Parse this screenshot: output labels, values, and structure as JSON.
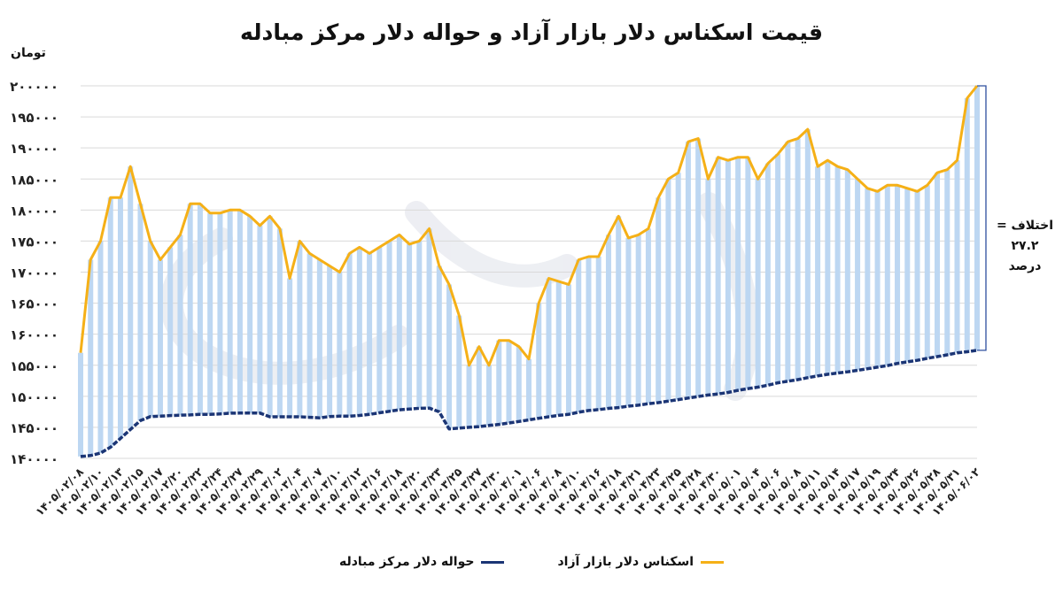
{
  "title": "قیمت اسکناس دلار بازار آزاد و حواله دلار مرکز مبادله",
  "y_unit": "تومان",
  "annotation": {
    "line1": "اختلاف =",
    "line2": "۲۷.۲",
    "line3": "درصد"
  },
  "colors": {
    "free": "#F5B017",
    "exchange": "#1B3575",
    "fill": "#BDD7F2",
    "grid": "#D9D9D9"
  },
  "chart_data": {
    "type": "line",
    "title": "قیمت اسکناس دلار بازار آزاد و حواله دلار مرکز مبادله",
    "ylabel": "تومان",
    "xlabel": "",
    "ylim": [
      140000,
      200000
    ],
    "yticks": [
      "۱۴۰۰۰۰",
      "۱۴۵۰۰۰",
      "۱۵۰۰۰۰",
      "۱۵۵۰۰۰",
      "۱۶۰۰۰۰",
      "۱۶۵۰۰۰",
      "۱۷۰۰۰۰",
      "۱۷۵۰۰۰",
      "۱۸۰۰۰۰",
      "۱۸۵۰۰۰",
      "۱۹۰۰۰۰",
      "۱۹۵۰۰۰",
      "۲۰۰۰۰۰"
    ],
    "xtick_labels": [
      "۱۴۰۵/۰۲/۰۸",
      "۱۴۰۵/۰۲/۱۰",
      "۱۴۰۵/۰۲/۱۳",
      "۱۴۰۵/۰۲/۱۵",
      "۱۴۰۵/۰۲/۱۷",
      "۱۴۰۵/۰۲/۲۰",
      "۱۴۰۵/۰۲/۲۲",
      "۱۴۰۵/۰۲/۲۴",
      "۱۴۰۵/۰۲/۲۷",
      "۱۴۰۵/۰۲/۲۹",
      "۱۴۰۵/۰۳/۰۲",
      "۱۴۰۵/۰۳/۰۴",
      "۱۴۰۵/۰۳/۰۷",
      "۱۴۰۵/۰۳/۱۰",
      "۱۴۰۵/۰۳/۱۲",
      "۱۴۰۵/۰۳/۱۶",
      "۱۴۰۵/۰۳/۱۸",
      "۱۴۰۵/۰۳/۲۰",
      "۱۴۰۵/۰۳/۲۳",
      "۱۴۰۵/۰۳/۲۵",
      "۱۴۰۵/۰۳/۲۷",
      "۱۴۰۵/۰۳/۳۰",
      "۱۴۰۵/۰۴/۰۱",
      "۱۴۰۵/۰۴/۰۶",
      "۱۴۰۵/۰۴/۰۸",
      "۱۴۰۵/۰۴/۱۰",
      "۱۴۰۵/۰۴/۱۶",
      "۱۴۰۵/۰۴/۱۸",
      "۱۴۰۵/۰۴/۲۱",
      "۱۴۰۵/۰۴/۲۳",
      "۱۴۰۵/۰۴/۲۵",
      "۱۴۰۵/۰۴/۲۸",
      "۱۴۰۵/۰۴/۳۰",
      "۱۴۰۵/۰۵/۰۱",
      "۱۴۰۵/۰۵/۰۴",
      "۱۴۰۵/۰۵/۰۶",
      "۱۴۰۵/۰۵/۰۸",
      "۱۴۰۵/۰۵/۱۱",
      "۱۴۰۵/۰۵/۱۴",
      "۱۴۰۵/۰۵/۱۷",
      "۱۴۰۵/۰۵/۱۹",
      "۱۴۰۵/۰۵/۲۴",
      "۱۴۰۵/۰۵/۲۶",
      "۱۴۰۵/۰۵/۲۸",
      "۱۴۰۵/۰۵/۳۱",
      "۱۴۰۵/۰۶/۰۲"
    ],
    "legend_position": "bottom",
    "grid": true,
    "series": [
      {
        "name": "اسکناس دلار بازار آزاد",
        "values": [
          157000,
          172000,
          175000,
          182000,
          182000,
          187000,
          181000,
          175000,
          172000,
          174000,
          176000,
          181000,
          181000,
          179500,
          179500,
          180000,
          180000,
          179000,
          177500,
          179000,
          177000,
          169000,
          175000,
          173000,
          172000,
          171000,
          170000,
          173000,
          174000,
          173000,
          174000,
          175000,
          176000,
          174500,
          175000,
          177000,
          171000,
          168000,
          163000,
          155000,
          158000,
          155000,
          159000,
          159000,
          158000,
          156000,
          165000,
          169000,
          168500,
          168000,
          172000,
          172500,
          172500,
          176000,
          179000,
          175500,
          176000,
          177000,
          182000,
          185000,
          186000,
          191000,
          191500,
          185000,
          188500,
          188000,
          188500,
          188500,
          185000,
          187500,
          189000,
          191000,
          191500,
          193000,
          187000,
          188000,
          187000,
          186500,
          185000,
          183500,
          183000,
          184000,
          184000,
          183500,
          183000,
          184000,
          186000,
          186500,
          188000,
          198000,
          200000
        ]
      },
      {
        "name": "حواله دلار مرکز مبادله",
        "values": [
          140300,
          140400,
          140600,
          141100,
          142000,
          143200,
          144300,
          145600,
          146500,
          146800,
          146800,
          146900,
          146900,
          147000,
          147000,
          147100,
          147100,
          147100,
          147200,
          147300,
          147300,
          147300,
          147300,
          147300,
          146600,
          146700,
          146700,
          146700,
          146700,
          146600,
          146500,
          146700,
          146800,
          146800,
          146800,
          146900,
          147000,
          147200,
          147400,
          147600,
          147800,
          147900,
          148000,
          148100,
          148100,
          148200,
          144700,
          144800,
          144900,
          145000,
          145100,
          145200,
          145400,
          145500,
          145700,
          145900,
          146100,
          146300,
          146500,
          146700,
          146900,
          147000,
          147200,
          147500,
          147700,
          147800,
          148000,
          148100,
          148200,
          148400,
          148500,
          148700,
          148900,
          149000,
          149200,
          149400,
          149600,
          149800,
          150000,
          150200,
          150300,
          150500,
          150700,
          151000,
          151200,
          151400,
          151600,
          151900,
          152200,
          152400,
          152600,
          152800,
          153100,
          153300,
          153500,
          153700,
          153800,
          154000,
          154200,
          154400,
          154600,
          154800,
          155000,
          155300,
          155500,
          155700,
          155900,
          156200,
          156400,
          156600,
          156900,
          157100,
          157200,
          157400
        ]
      }
    ]
  }
}
